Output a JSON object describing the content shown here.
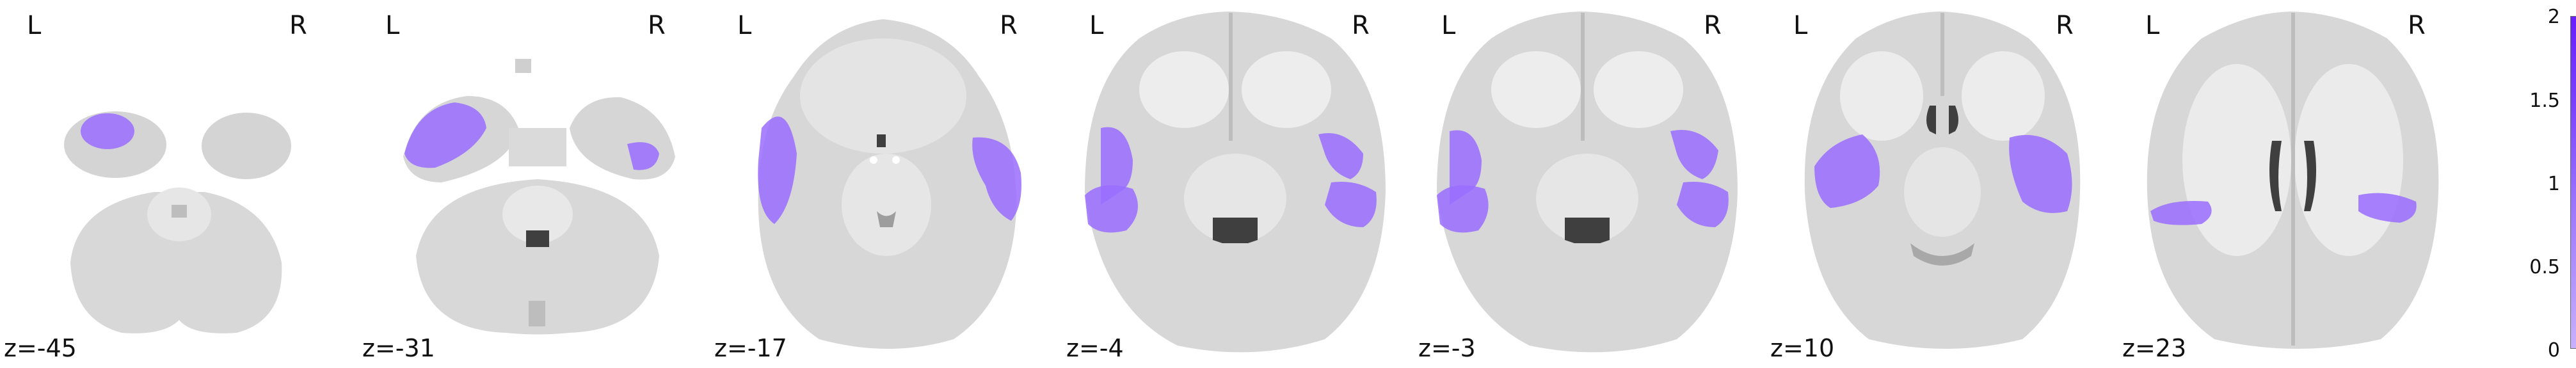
{
  "orientation": {
    "left": "L",
    "right": "R"
  },
  "slices": [
    {
      "label": "z=-45"
    },
    {
      "label": "z=-31"
    },
    {
      "label": "z=-17"
    },
    {
      "label": "z=-4"
    },
    {
      "label": "z=-3"
    },
    {
      "label": "z=10"
    },
    {
      "label": "z=23"
    }
  ],
  "colorbar": {
    "ticks": [
      "2",
      "1.5",
      "1",
      "0.5",
      "0"
    ],
    "color_low": "#c9b0ff",
    "color_high": "#6a1fff"
  },
  "colors": {
    "brain_gray": "#d6d6d6",
    "white_matter": "#ececec",
    "overlay": "#9a6dff",
    "ventricle": "#3f3f3f"
  }
}
